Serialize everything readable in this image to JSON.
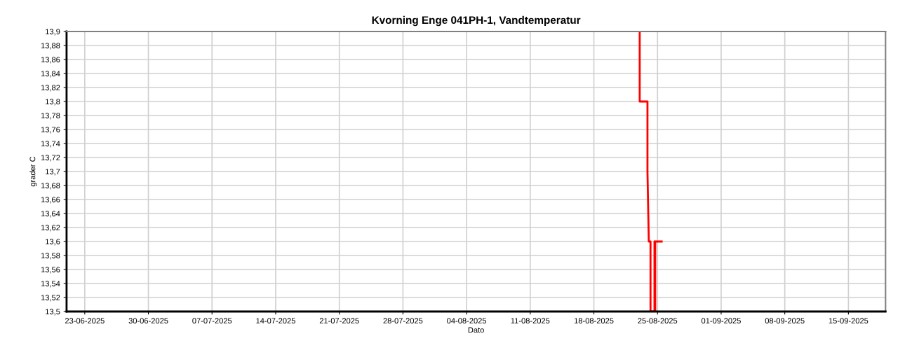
{
  "chart_data": {
    "type": "line",
    "title": "Kvorning Enge 041PH-1, Vandtemperatur",
    "xlabel": "Dato",
    "ylabel": "grader C",
    "series": [
      {
        "color": "#ff0000",
        "x": [
          "2025-08-23T01:00",
          "2025-08-23T01:00",
          "2025-08-23T21:30",
          "2025-08-23T21:30",
          "2025-08-24T01:00",
          "2025-08-24T05:30",
          "2025-08-24T05:30",
          "2025-08-24T16:00",
          "2025-08-24T16:00",
          "2025-08-24T17:00",
          "2025-08-24T17:00",
          "2025-08-24T18:00",
          "2025-08-24T18:00",
          "2025-08-25T11:00"
        ],
        "values": [
          13.9,
          13.8,
          13.8,
          13.7,
          13.6,
          13.6,
          13.5,
          13.5,
          13.6,
          13.6,
          13.5,
          13.5,
          13.6,
          13.6
        ]
      }
    ],
    "xlim": [
      "2025-06-21",
      "2025-09-19T02:00"
    ],
    "xticks": [
      {
        "value": "2025-06-23",
        "label": "23-06-2025"
      },
      {
        "value": "2025-06-30",
        "label": "30-06-2025"
      },
      {
        "value": "2025-07-07",
        "label": "07-07-2025"
      },
      {
        "value": "2025-07-14",
        "label": "14-07-2025"
      },
      {
        "value": "2025-07-21",
        "label": "21-07-2025"
      },
      {
        "value": "2025-07-28",
        "label": "28-07-2025"
      },
      {
        "value": "2025-08-04",
        "label": "04-08-2025"
      },
      {
        "value": "2025-08-11",
        "label": "11-08-2025"
      },
      {
        "value": "2025-08-18",
        "label": "18-08-2025"
      },
      {
        "value": "2025-08-25",
        "label": "25-08-2025"
      },
      {
        "value": "2025-09-01",
        "label": "01-09-2025"
      },
      {
        "value": "2025-09-08",
        "label": "08-09-2025"
      },
      {
        "value": "2025-09-15",
        "label": "15-09-2025"
      }
    ],
    "ylim": [
      13.5,
      13.9
    ],
    "yticks": [
      {
        "value": 13.5,
        "label": "13,5"
      },
      {
        "value": 13.52,
        "label": "13,52"
      },
      {
        "value": 13.54,
        "label": "13,54"
      },
      {
        "value": 13.56,
        "label": "13,56"
      },
      {
        "value": 13.58,
        "label": "13,58"
      },
      {
        "value": 13.6,
        "label": "13,6"
      },
      {
        "value": 13.62,
        "label": "13,62"
      },
      {
        "value": 13.64,
        "label": "13,64"
      },
      {
        "value": 13.66,
        "label": "13,66"
      },
      {
        "value": 13.68,
        "label": "13,68"
      },
      {
        "value": 13.7,
        "label": "13,7"
      },
      {
        "value": 13.72,
        "label": "13,72"
      },
      {
        "value": 13.74,
        "label": "13,74"
      },
      {
        "value": 13.76,
        "label": "13,76"
      },
      {
        "value": 13.78,
        "label": "13,78"
      },
      {
        "value": 13.8,
        "label": "13,8"
      },
      {
        "value": 13.82,
        "label": "13,82"
      },
      {
        "value": 13.84,
        "label": "13,84"
      },
      {
        "value": 13.86,
        "label": "13,86"
      },
      {
        "value": 13.88,
        "label": "13,88"
      },
      {
        "value": 13.9,
        "label": "13,9"
      }
    ],
    "grid": true,
    "line_style": "solid",
    "marker": "none"
  }
}
